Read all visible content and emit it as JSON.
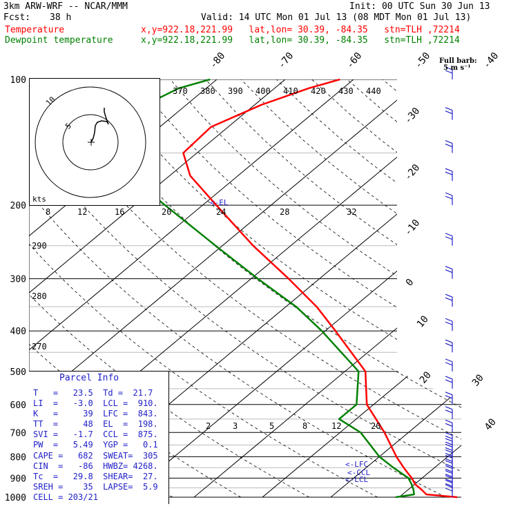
{
  "header": {
    "model": "3km ARW-WRF -- NCAR/MMM",
    "init": "Init: 00 UTC Sun 30 Jun 13",
    "fcst_label": "Fcst:",
    "fcst_value": "38 h",
    "valid": "Valid: 14 UTC Mon 01 Jul 13 (08 MDT Mon 01 Jul 13)",
    "temp_label": "Temperature",
    "temp_loc": "x,y=922.18,221.99   lat,lon= 30.39, -84.35   stn=TLH ,72214",
    "dew_label": "Dewpoint temperature",
    "dew_loc": "x,y=922.18,221.99   lat,lon= 30.39, -84.35   stn=TLH ,72214"
  },
  "barb_legend": {
    "title": "Full barb:",
    "value": "5 m s⁻¹"
  },
  "hodograph": {
    "ring_labels": [
      "5",
      "10"
    ],
    "units": "kts"
  },
  "parcel_info": {
    "title": "Parcel Info",
    "rows": [
      "T   =   23.5  Td =  21.7",
      "LI  =   -3.0  LCL =  910.",
      "K   =     39  LFC =  843.",
      "TT  =     48  EL  =  198.",
      "SVI =   -1.7  CCL =  875.",
      "PW  =   5.49  YGP =   0.1",
      "CAPE =   682  SWEAT=  305",
      "CIN  =   -86  HWBZ= 4268.",
      "Tc  =   29.8  SHEAR=  27.",
      "SREH =    35  LAPSE=  5.9",
      "CELL = 203/21"
    ]
  },
  "level_labels": {
    "lcl": "<-LCL",
    "ccl": "<-CCL",
    "lfc": "<-LFC",
    "el": "<-EL"
  },
  "chart_data": {
    "type": "line",
    "subtype": "skew-T log-p sounding",
    "title": "",
    "ylabel": "",
    "xlabel": "",
    "y_scale": "log",
    "ylim": [
      1000,
      100
    ],
    "pressure_ticks": [
      "100",
      "200",
      "300",
      "400",
      "500",
      "600",
      "700",
      "800",
      "900",
      "1000"
    ],
    "pressure_tick_values": [
      100,
      200,
      300,
      400,
      500,
      600,
      700,
      800,
      900,
      1000
    ],
    "temperature_labels_top": [
      "-80",
      "-70",
      "-60",
      "-50",
      "-40"
    ],
    "temperature_labels_right": [
      "-30",
      "-20",
      "-10",
      "0",
      "10",
      "20",
      "30",
      "40"
    ],
    "theta_labels": [
      "370",
      "380",
      "390",
      "400",
      "410",
      "420",
      "430",
      "440"
    ],
    "theta_side_labels": [
      "290",
      "280",
      "270"
    ],
    "mixing_ratio_upper_labels": [
      "8",
      "12",
      "16",
      "20",
      "24",
      "28",
      "32"
    ],
    "mixing_ratio_lower_labels": [
      "2",
      "3",
      "5",
      "8",
      "12",
      "20"
    ],
    "series": [
      {
        "name": "Temperature",
        "color": "#ff0000",
        "p": [
          1000,
          985,
          960,
          930,
          900,
          875,
          850,
          800,
          700,
          600,
          500,
          400,
          350,
          300,
          250,
          200,
          170,
          150,
          130,
          115,
          105,
          100
        ],
        "t": [
          28.5,
          23.5,
          22.0,
          20.0,
          18.5,
          17.0,
          15.5,
          12.5,
          6.5,
          -1.0,
          -7.0,
          -18.5,
          -25.5,
          -34.5,
          -45.5,
          -58.0,
          -67.0,
          -72.0,
          -72.5,
          -69.0,
          -65.0,
          -62.0
        ]
      },
      {
        "name": "Dewpoint temperature",
        "color": "#008000",
        "p": [
          1000,
          985,
          960,
          930,
          900,
          850,
          800,
          700,
          650,
          600,
          500,
          400,
          350,
          300,
          250,
          200,
          170,
          150,
          130,
          115,
          105,
          100
        ],
        "t": [
          19.5,
          21.7,
          20.8,
          19.5,
          18.0,
          14.0,
          10.0,
          3.0,
          -2.5,
          -2.5,
          -8.0,
          -20.5,
          -28.5,
          -39.0,
          -51.0,
          -65.5,
          -76.0,
          -83.0,
          -86.0,
          -86.0,
          -84.0,
          -81.0
        ]
      }
    ],
    "wind_barbs": {
      "units": "m s-1",
      "levels": [
        "1000",
        "975",
        "950",
        "925",
        "900",
        "875",
        "850",
        "825",
        "800",
        "775",
        "750",
        "700",
        "650",
        "600",
        "550",
        "500",
        "450",
        "400",
        "350",
        "300",
        "250",
        "200",
        "175",
        "150",
        "125",
        "100"
      ]
    }
  }
}
